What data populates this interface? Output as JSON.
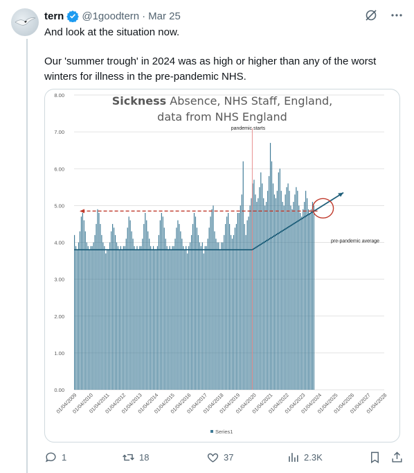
{
  "tweet": {
    "author_name": "tern",
    "author_handle": "@1goodtern",
    "separator": "·",
    "date": "Mar 25",
    "text_line1": "And look at the situation now.",
    "text_line2": "Our 'summer trough' in 2024 was as high or higher than any of the worst winters for illness in the pre-pandemic NHS.",
    "icons": [
      "grok-icon",
      "more-icon",
      "reply-icon",
      "retweet-icon",
      "like-icon",
      "views-icon",
      "bookmark-icon",
      "share-icon"
    ]
  },
  "stats": {
    "replies": "1",
    "retweets": "18",
    "likes": "37",
    "views": "2.3K"
  },
  "chart_data": {
    "type": "bar",
    "title_bold": "Sickness",
    "title_rest": " Absence, NHS Staff, England,",
    "title_line2": "data from NHS England",
    "xlabel": "",
    "ylabel": "",
    "ylim": [
      0,
      8
    ],
    "y_ticks": [
      "0.00",
      "1.00",
      "2.00",
      "3.00",
      "4.00",
      "5.00",
      "6.00",
      "7.00",
      "8.00"
    ],
    "x_ticks": [
      "01/04/2009",
      "01/04/2010",
      "01/04/2011",
      "01/04/2012",
      "01/04/2013",
      "01/04/2014",
      "01/04/2015",
      "01/04/2016",
      "01/04/2017",
      "01/04/2018",
      "01/04/2019",
      "01/04/2020",
      "01/04/2021",
      "01/04/2022",
      "01/04/2023",
      "01/04/2024",
      "01/04/2025",
      "01/04/2026",
      "01/04/2027",
      "01/04/2028"
    ],
    "grid": true,
    "legend": "bottom",
    "series": [
      {
        "name": "Series1",
        "color": "#3e7a96",
        "start": "2009-04",
        "values": [
          4.2,
          3.9,
          3.8,
          4.0,
          4.3,
          4.7,
          4.8,
          4.6,
          4.3,
          4.0,
          3.9,
          3.8,
          3.9,
          3.9,
          4.0,
          4.2,
          4.5,
          4.9,
          4.8,
          4.5,
          4.2,
          4.0,
          3.9,
          3.7,
          3.8,
          3.8,
          4.0,
          4.3,
          4.5,
          4.4,
          4.2,
          4.0,
          3.9,
          3.8,
          3.9,
          3.8,
          3.9,
          3.9,
          4.1,
          4.4,
          4.7,
          4.6,
          4.3,
          4.1,
          3.9,
          3.8,
          3.9,
          3.8,
          3.9,
          3.9,
          4.1,
          4.5,
          4.8,
          4.6,
          4.3,
          4.1,
          3.9,
          3.8,
          3.9,
          3.8,
          3.8,
          3.9,
          4.2,
          4.6,
          4.8,
          4.7,
          4.4,
          4.1,
          3.9,
          3.8,
          3.9,
          3.8,
          3.9,
          3.9,
          4.1,
          4.4,
          4.6,
          4.5,
          4.3,
          4.1,
          3.9,
          3.8,
          3.9,
          3.7,
          3.9,
          4.0,
          4.2,
          4.5,
          4.8,
          4.7,
          4.4,
          4.2,
          4.0,
          3.9,
          4.0,
          3.7,
          3.9,
          3.9,
          4.1,
          4.4,
          4.7,
          4.9,
          5.0,
          4.3,
          4.1,
          4.0,
          4.0,
          3.8,
          4.0,
          4.0,
          4.2,
          4.5,
          4.7,
          4.8,
          4.5,
          4.2,
          4.1,
          4.2,
          4.4,
          4.5,
          4.8,
          4.8,
          5.0,
          5.3,
          6.2,
          4.5,
          4.2,
          4.6,
          4.7,
          5.0,
          5.2,
          5.6,
          5.7,
          5.3,
          5.1,
          5.2,
          5.5,
          5.9,
          5.6,
          5.2,
          5.0,
          5.1,
          5.4,
          5.8,
          6.7,
          6.2,
          5.6,
          5.3,
          5.2,
          5.4,
          5.9,
          6.0,
          5.4,
          5.1,
          5.0,
          5.3,
          5.5,
          5.6,
          5.4,
          5.0,
          4.9,
          5.1,
          5.3,
          5.5,
          5.4,
          5.0,
          4.8,
          4.7,
          4.9,
          5.1,
          5.4,
          5.2,
          4.9,
          4.8,
          4.9,
          5.1,
          5.0
        ]
      }
    ],
    "annotations": {
      "pandemic_label": "pandemic starts",
      "pandemic_date": "2020-03",
      "average_label": "pre-pandemic average",
      "average_value": 3.8,
      "reference_value": 4.85,
      "trend_end_value": 5.35,
      "summer_2024_value": 4.85
    }
  }
}
